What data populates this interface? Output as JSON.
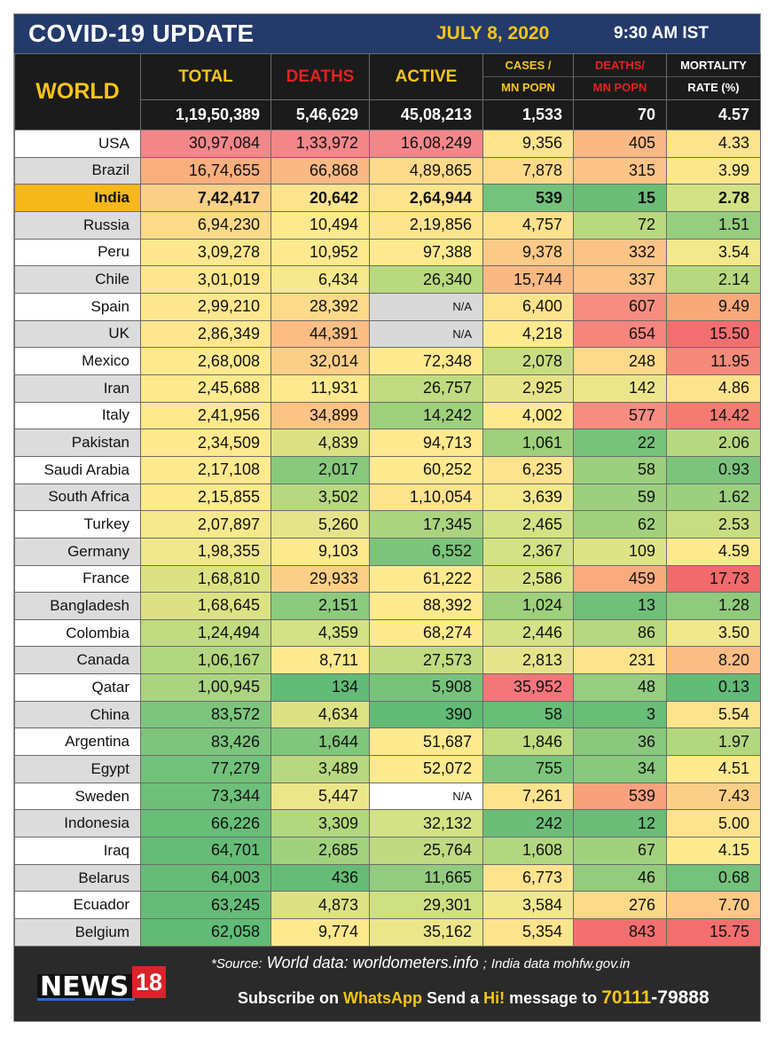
{
  "header": {
    "title": "COVID-19 UPDATE",
    "date": "JULY 8, 2020",
    "time": "9:30 AM IST"
  },
  "columns": {
    "world": "WORLD",
    "total": "TOTAL",
    "deaths": "DEATHS",
    "active": "ACTIVE",
    "cases_mn_line1": "CASES /",
    "cases_mn_line2": "MN POPN",
    "deaths_mn_line1": "DEATHS/",
    "deaths_mn_line2": "MN POPN",
    "mortality_line1": "MORTALITY",
    "mortality_line2": "RATE (%)"
  },
  "world_totals": {
    "total": "1,19,50,389",
    "deaths": "5,46,629",
    "active": "45,08,213",
    "cases_mn": "1,533",
    "deaths_mn": "70",
    "mortality": "4.57"
  },
  "rows": [
    {
      "country": "USA",
      "total": "30,97,084",
      "deaths": "1,33,972",
      "active": "16,08,249",
      "cases_mn": "9,356",
      "deaths_mn": "405",
      "mortality": "4.33",
      "colors": [
        "#f2878a",
        "#f2878a",
        "#f2878a",
        "#fde38d",
        "#f9b884",
        "#fde38d"
      ]
    },
    {
      "country": "Brazil",
      "total": "16,74,655",
      "deaths": "66,868",
      "active": "4,89,865",
      "cases_mn": "7,878",
      "deaths_mn": "315",
      "mortality": "3.99",
      "colors": [
        "#f9ae7d",
        "#f9b884",
        "#fdd98a",
        "#fdd98a",
        "#fbc386",
        "#fde78c"
      ]
    },
    {
      "country": "India",
      "total": "7,42,417",
      "deaths": "20,642",
      "active": "2,64,944",
      "cases_mn": "539",
      "deaths_mn": "15",
      "mortality": "2.78",
      "colors": [
        "#fccf87",
        "#fde38d",
        "#fde38d",
        "#74c27b",
        "#6bbd77",
        "#d3e284"
      ]
    },
    {
      "country": "Russia",
      "total": "6,94,230",
      "deaths": "10,494",
      "active": "2,19,856",
      "cases_mn": "4,757",
      "deaths_mn": "72",
      "mortality": "1.51",
      "colors": [
        "#fdd98a",
        "#fee98e",
        "#fde38d",
        "#fde18c",
        "#b9d97f",
        "#96cd7e"
      ]
    },
    {
      "country": "Peru",
      "total": "3,09,278",
      "deaths": "10,952",
      "active": "97,388",
      "cases_mn": "9,378",
      "deaths_mn": "332",
      "mortality": "3.54",
      "colors": [
        "#fee78e",
        "#fee98e",
        "#fee98e",
        "#fcc986",
        "#fbc386",
        "#f2e88c"
      ]
    },
    {
      "country": "Chile",
      "total": "3,01,019",
      "deaths": "6,434",
      "active": "26,340",
      "cases_mn": "15,744",
      "deaths_mn": "337",
      "mortality": "2.14",
      "colors": [
        "#fee78e",
        "#f6e88c",
        "#b9d97f",
        "#f9b884",
        "#fbc386",
        "#b7d880"
      ]
    },
    {
      "country": "Spain",
      "total": "2,99,210",
      "deaths": "28,392",
      "active": "N/A",
      "cases_mn": "6,400",
      "deaths_mn": "607",
      "mortality": "9.49",
      "colors": [
        "#fee78e",
        "#fdd98a",
        "#d9d9d9",
        "#fee38d",
        "#f78d80",
        "#f9a87a"
      ]
    },
    {
      "country": "UK",
      "total": "2,86,349",
      "deaths": "44,391",
      "active": "N/A",
      "cases_mn": "4,218",
      "deaths_mn": "654",
      "mortality": "15.50",
      "colors": [
        "#fee78e",
        "#fbbd84",
        "#d9d9d9",
        "#fee98e",
        "#f6857e",
        "#f36f6f"
      ]
    },
    {
      "country": "Mexico",
      "total": "2,68,008",
      "deaths": "32,014",
      "active": "72,348",
      "cases_mn": "2,078",
      "deaths_mn": "248",
      "mortality": "11.95",
      "colors": [
        "#fee98e",
        "#fccf87",
        "#fee98e",
        "#c8dd81",
        "#fdd98a",
        "#f68a7a"
      ]
    },
    {
      "country": "Iran",
      "total": "2,45,688",
      "deaths": "11,931",
      "active": "26,757",
      "cases_mn": "2,925",
      "deaths_mn": "142",
      "mortality": "4.86",
      "colors": [
        "#fee98e",
        "#fee98e",
        "#c0db80",
        "#e6e48a",
        "#ece68b",
        "#fee38d"
      ]
    },
    {
      "country": "Italy",
      "total": "2,41,956",
      "deaths": "34,899",
      "active": "14,242",
      "cases_mn": "4,002",
      "deaths_mn": "577",
      "mortality": "14.42",
      "colors": [
        "#fee98e",
        "#fbc386",
        "#9fd07c",
        "#fee98e",
        "#f78d80",
        "#f47a72"
      ]
    },
    {
      "country": "Pakistan",
      "total": "2,34,509",
      "deaths": "4,839",
      "active": "94,713",
      "cases_mn": "1,061",
      "deaths_mn": "22",
      "mortality": "2.06",
      "colors": [
        "#fee98e",
        "#dce283",
        "#fee98e",
        "#9fd07c",
        "#78c37b",
        "#b7d880"
      ]
    },
    {
      "country": "Saudi Arabia",
      "total": "2,17,108",
      "deaths": "2,017",
      "active": "60,252",
      "cases_mn": "6,235",
      "deaths_mn": "58",
      "mortality": "0.93",
      "colors": [
        "#fde98e",
        "#88c97d",
        "#fde98e",
        "#fee38d",
        "#9ccf7e",
        "#7cc47c"
      ]
    },
    {
      "country": "South Africa",
      "total": "2,15,855",
      "deaths": "3,502",
      "active": "1,10,054",
      "cases_mn": "3,639",
      "deaths_mn": "59",
      "mortality": "1.62",
      "colors": [
        "#fde98e",
        "#b7d880",
        "#fde38d",
        "#f3e88c",
        "#9ccf7e",
        "#9ccf7e"
      ]
    },
    {
      "country": "Turkey",
      "total": "2,07,897",
      "deaths": "5,260",
      "active": "17,345",
      "cases_mn": "2,465",
      "deaths_mn": "62",
      "mortality": "2.53",
      "colors": [
        "#f6e88c",
        "#e6e48a",
        "#aad47f",
        "#d3e284",
        "#a2d17e",
        "#c8dd81"
      ]
    },
    {
      "country": "Germany",
      "total": "1,98,355",
      "deaths": "9,103",
      "active": "6,552",
      "cases_mn": "2,367",
      "deaths_mn": "109",
      "mortality": "4.59",
      "colors": [
        "#f1e78c",
        "#fde98e",
        "#7cc47c",
        "#d3e284",
        "#ddE486",
        "#fee98e"
      ]
    },
    {
      "country": "France",
      "total": "1,68,810",
      "deaths": "29,933",
      "active": "61,222",
      "cases_mn": "2,586",
      "deaths_mn": "459",
      "mortality": "17.73",
      "colors": [
        "#dce283",
        "#fccf87",
        "#fde98e",
        "#d9e386",
        "#f9ab7e",
        "#f16a6c"
      ]
    },
    {
      "country": "Bangladesh",
      "total": "1,68,645",
      "deaths": "2,151",
      "active": "88,392",
      "cases_mn": "1,024",
      "deaths_mn": "13",
      "mortality": "1.28",
      "colors": [
        "#dce283",
        "#8ccb7d",
        "#fde98e",
        "#9fd07c",
        "#70c07a",
        "#8fcb7d"
      ]
    },
    {
      "country": "Colombia",
      "total": "1,24,494",
      "deaths": "4,359",
      "active": "68,274",
      "cases_mn": "2,446",
      "deaths_mn": "86",
      "mortality": "3.50",
      "colors": [
        "#c0db80",
        "#d3e284",
        "#fde98e",
        "#d3e284",
        "#b7d880",
        "#f1e78c"
      ]
    },
    {
      "country": "Canada",
      "total": "1,06,167",
      "deaths": "8,711",
      "active": "27,573",
      "cases_mn": "2,813",
      "deaths_mn": "231",
      "mortality": "8.20",
      "colors": [
        "#b3d77f",
        "#fde98e",
        "#c0db80",
        "#e6e48a",
        "#fee38d",
        "#fbbd84"
      ]
    },
    {
      "country": "Qatar",
      "total": "1,00,945",
      "deaths": "134",
      "active": "5,908",
      "cases_mn": "35,952",
      "deaths_mn": "48",
      "mortality": "0.13",
      "colors": [
        "#aad47f",
        "#62bb76",
        "#78c37b",
        "#f3767a",
        "#96cd7e",
        "#62bb76"
      ]
    },
    {
      "country": "China",
      "total": "83,572",
      "deaths": "4,634",
      "active": "390",
      "cases_mn": "58",
      "deaths_mn": "3",
      "mortality": "5.54",
      "colors": [
        "#7dc57c",
        "#dce283",
        "#62bb76",
        "#68bd77",
        "#68bd77",
        "#fee38d"
      ]
    },
    {
      "country": "Argentina",
      "total": "83,426",
      "deaths": "1,644",
      "active": "51,687",
      "cases_mn": "1,846",
      "deaths_mn": "36",
      "mortality": "1.97",
      "colors": [
        "#7dc57c",
        "#80c67c",
        "#fde98e",
        "#c0db80",
        "#88c97d",
        "#b3d77f"
      ]
    },
    {
      "country": "Egypt",
      "total": "77,279",
      "deaths": "3,489",
      "active": "52,072",
      "cases_mn": "755",
      "deaths_mn": "34",
      "mortality": "4.51",
      "colors": [
        "#72c17a",
        "#b7d880",
        "#fde98e",
        "#7dc57c",
        "#88c97d",
        "#fde98e"
      ]
    },
    {
      "country": "Sweden",
      "total": "73,344",
      "deaths": "5,447",
      "active": "N/A",
      "cases_mn": "7,261",
      "deaths_mn": "539",
      "mortality": "7.43",
      "colors": [
        "#6ebf79",
        "#ece68b",
        "#ffffff",
        "#fde38d",
        "#f9a17d",
        "#fccf87"
      ]
    },
    {
      "country": "Indonesia",
      "total": "66,226",
      "deaths": "3,309",
      "active": "32,132",
      "cases_mn": "242",
      "deaths_mn": "12",
      "mortality": "5.00",
      "colors": [
        "#68bd77",
        "#b3d77f",
        "#d3e284",
        "#6bbd77",
        "#6bbd77",
        "#fee38d"
      ]
    },
    {
      "country": "Iraq",
      "total": "64,701",
      "deaths": "2,685",
      "active": "25,764",
      "cases_mn": "1,608",
      "deaths_mn": "67",
      "mortality": "4.15",
      "colors": [
        "#66bc77",
        "#a2d17e",
        "#bfda80",
        "#b3d77f",
        "#a2d17e",
        "#fde98e"
      ]
    },
    {
      "country": "Belarus",
      "total": "64,003",
      "deaths": "436",
      "active": "11,665",
      "cases_mn": "6,773",
      "deaths_mn": "46",
      "mortality": "0.68",
      "colors": [
        "#66bc77",
        "#66bc77",
        "#93cc7e",
        "#fde38d",
        "#94cc7d",
        "#74c27b"
      ]
    },
    {
      "country": "Ecuador",
      "total": "63,245",
      "deaths": "4,873",
      "active": "29,301",
      "cases_mn": "3,584",
      "deaths_mn": "276",
      "mortality": "7.70",
      "colors": [
        "#66bc77",
        "#dce283",
        "#cfe083",
        "#f1e78c",
        "#fdd98a",
        "#fcc986"
      ]
    },
    {
      "country": "Belgium",
      "total": "62,058",
      "deaths": "9,774",
      "active": "35,162",
      "cases_mn": "5,354",
      "deaths_mn": "843",
      "mortality": "15.75",
      "colors": [
        "#62bb76",
        "#fee98e",
        "#ece68b",
        "#fee38d",
        "#f36f6f",
        "#f36f6f"
      ]
    }
  ],
  "footer": {
    "logo_text": "NEWS",
    "logo_num": "18",
    "source_label": "*Source:",
    "source_world": "World data: worldometers.info",
    "source_sep": ";",
    "source_india": "India data mohfw.gov.in",
    "sub_1": "Subscribe on",
    "sub_whatsapp": "WhatsApp",
    "sub_2": "Send a",
    "sub_hi": "Hi!",
    "sub_3": "message to",
    "sub_num_a": "70111",
    "sub_num_b": "-79888"
  }
}
